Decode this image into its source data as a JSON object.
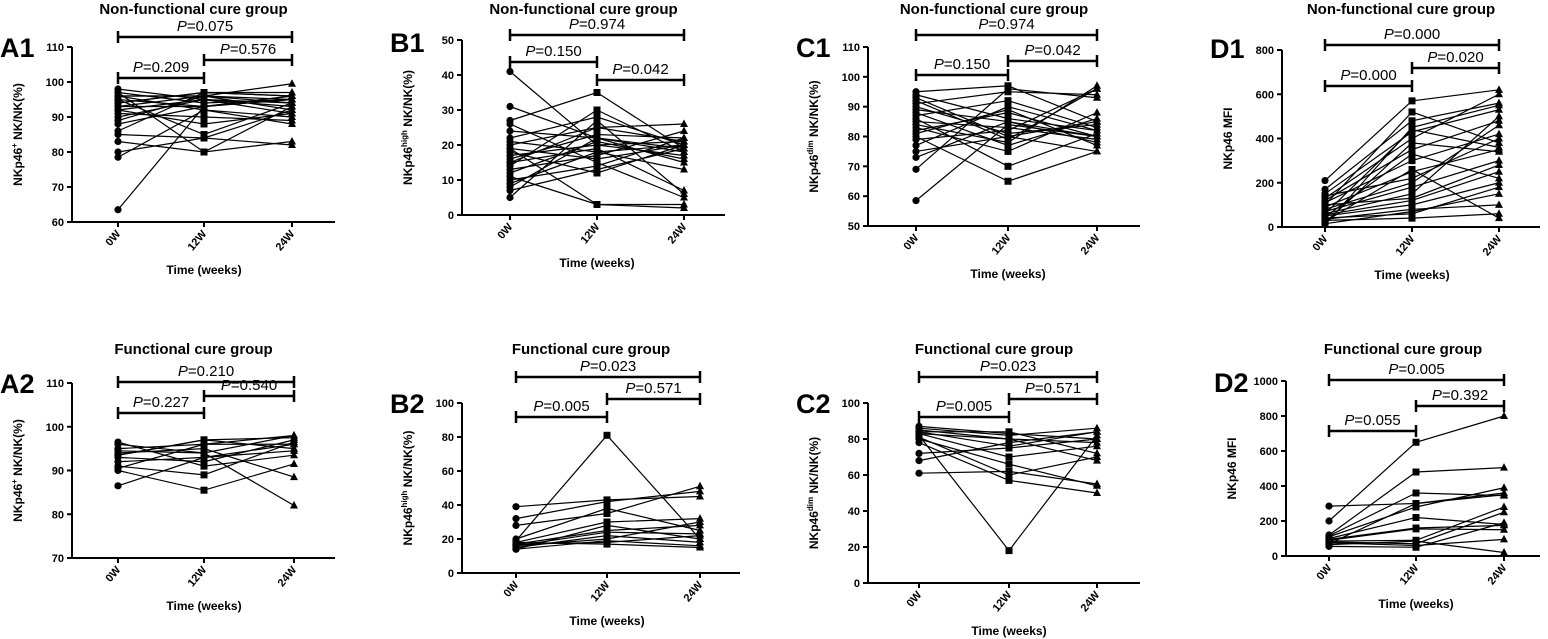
{
  "chart_data": [
    {
      "id": "A1",
      "type": "line",
      "title": "Non-functional cure group",
      "ylabel": {
        "prefix": "NKp46",
        "sup": "+",
        "suffix": " NK/NK(%)"
      },
      "xlabel": "Time (weeks)",
      "categories": [
        "0W",
        "12W",
        "24W"
      ],
      "ylim": [
        60,
        110
      ],
      "yticks": [
        60,
        70,
        80,
        90,
        100,
        110
      ],
      "pvalues": {
        "overall": "=0.075",
        "w0_w12": "=0.209",
        "w12_w24": "=0.576"
      },
      "series": [
        [
          63.5,
          93,
          95
        ],
        [
          78.5,
          92,
          88
        ],
        [
          80,
          84,
          92
        ],
        [
          83,
          80,
          93
        ],
        [
          85,
          84,
          82
        ],
        [
          86,
          97,
          96
        ],
        [
          90,
          95,
          94
        ],
        [
          92,
          88,
          91
        ],
        [
          93,
          96,
          95
        ],
        [
          94,
          97,
          97
        ],
        [
          95,
          93,
          96
        ],
        [
          96,
          96,
          99.5
        ],
        [
          97,
          94,
          95
        ],
        [
          98,
          95,
          93
        ],
        [
          91,
          90,
          89
        ],
        [
          89,
          96,
          92
        ],
        [
          95,
          85,
          94
        ],
        [
          96,
          92,
          90
        ],
        [
          94,
          97,
          96
        ],
        [
          93,
          93,
          95
        ],
        [
          97,
          80,
          83
        ],
        [
          92,
          95,
          91
        ],
        [
          88,
          93,
          96
        ],
        [
          96,
          96,
          94
        ]
      ]
    },
    {
      "id": "B1",
      "type": "line",
      "title": "Non-functional cure group",
      "ylabel": {
        "prefix": "NKp46",
        "sup": "high",
        "suffix": " NK/NK(%)"
      },
      "xlabel": "Time (weeks)",
      "categories": [
        "0W",
        "12W",
        "24W"
      ],
      "ylim": [
        0,
        50
      ],
      "yticks": [
        0,
        10,
        20,
        30,
        40,
        50
      ],
      "pvalues": {
        "overall": "=0.974",
        "w0_w12": "=0.150",
        "w12_w24": "=0.042"
      },
      "series": [
        [
          41,
          20,
          17
        ],
        [
          31,
          22,
          19
        ],
        [
          27,
          35,
          19
        ],
        [
          26,
          15,
          5
        ],
        [
          22,
          28,
          20
        ],
        [
          20,
          25,
          26
        ],
        [
          19,
          3,
          3
        ],
        [
          18,
          12,
          20
        ],
        [
          17,
          20,
          21
        ],
        [
          16,
          23,
          22
        ],
        [
          15,
          19,
          7
        ],
        [
          14,
          30,
          18
        ],
        [
          13,
          17,
          24
        ],
        [
          12,
          21,
          16
        ],
        [
          10,
          14,
          22
        ],
        [
          9,
          18,
          20
        ],
        [
          8,
          22,
          15
        ],
        [
          7,
          13,
          19
        ],
        [
          5,
          27,
          6
        ],
        [
          11,
          3,
          2
        ],
        [
          21,
          18,
          13
        ],
        [
          24,
          22,
          18
        ],
        [
          15,
          25,
          21
        ],
        [
          19,
          16,
          20
        ]
      ]
    },
    {
      "id": "C1",
      "type": "line",
      "title": "Non-functional cure group",
      "ylabel": {
        "prefix": "NKp46",
        "sup": "dim",
        "suffix": " NK/NK(%)"
      },
      "xlabel": "Time (weeks)",
      "categories": [
        "0W",
        "12W",
        "24W"
      ],
      "ylim": [
        50,
        110
      ],
      "yticks": [
        50,
        60,
        70,
        80,
        90,
        100,
        110
      ],
      "pvalues": {
        "overall": "=0.974",
        "w0_w12": "=0.150",
        "w12_w24": "=0.042"
      },
      "series": [
        [
          58.5,
          84,
          80
        ],
        [
          69,
          96,
          93
        ],
        [
          73,
          85,
          80
        ],
        [
          75,
          80,
          85
        ],
        [
          77,
          90,
          82
        ],
        [
          79,
          82,
          96
        ],
        [
          80,
          65,
          75
        ],
        [
          82,
          88,
          80
        ],
        [
          84,
          78,
          97
        ],
        [
          85,
          83,
          79
        ],
        [
          86,
          70,
          81
        ],
        [
          87,
          92,
          83
        ],
        [
          88,
          77,
          86
        ],
        [
          89,
          85,
          78
        ],
        [
          90,
          81,
          84
        ],
        [
          91,
          95,
          94
        ],
        [
          93,
          80,
          75
        ],
        [
          94,
          86,
          82
        ],
        [
          95,
          97,
          85
        ],
        [
          83,
          75,
          88
        ],
        [
          81,
          89,
          77
        ],
        [
          92,
          79,
          96
        ]
      ]
    },
    {
      "id": "D1",
      "type": "line",
      "title": "Non-functional cure group",
      "ylabel": {
        "prefix": "NKp46 MFI",
        "sup": "",
        "suffix": ""
      },
      "xlabel": "Time (weeks)",
      "categories": [
        "0W",
        "12W",
        "24W"
      ],
      "ylim": [
        0,
        800
      ],
      "yticks": [
        0,
        200,
        400,
        600,
        800
      ],
      "pvalues": {
        "overall": "=0.000",
        "w0_w12": "=0.000",
        "w12_w24": "=0.020"
      },
      "series": [
        [
          210,
          570,
          620
        ],
        [
          170,
          480,
          560
        ],
        [
          150,
          430,
          530
        ],
        [
          130,
          400,
          600
        ],
        [
          120,
          350,
          480
        ],
        [
          110,
          300,
          420
        ],
        [
          100,
          520,
          380
        ],
        [
          90,
          250,
          350
        ],
        [
          80,
          200,
          460
        ],
        [
          70,
          180,
          300
        ],
        [
          60,
          150,
          500
        ],
        [
          55,
          120,
          250
        ],
        [
          50,
          100,
          200
        ],
        [
          45,
          330,
          220
        ],
        [
          40,
          60,
          180
        ],
        [
          35,
          80,
          100
        ],
        [
          30,
          40,
          60
        ],
        [
          25,
          260,
          40
        ],
        [
          20,
          380,
          340
        ],
        [
          15,
          70,
          150
        ],
        [
          10,
          450,
          550
        ],
        [
          140,
          220,
          400
        ],
        [
          60,
          440,
          360
        ],
        [
          100,
          130,
          280
        ]
      ]
    },
    {
      "id": "A2",
      "type": "line",
      "title": "Functional cure group",
      "ylabel": {
        "prefix": "NKp46",
        "sup": "+",
        "suffix": " NK/NK(%)"
      },
      "xlabel": "Time (weeks)",
      "categories": [
        "0W",
        "12W",
        "24W"
      ],
      "ylim": [
        70,
        110
      ],
      "yticks": [
        70,
        80,
        90,
        100,
        110
      ],
      "pvalues": {
        "overall": "=0.210",
        "w0_w12": "=0.227",
        "w12_w24": "=0.540"
      },
      "series": [
        [
          86.5,
          93,
          96
        ],
        [
          90,
          85.5,
          91.5
        ],
        [
          90.5,
          96,
          98
        ],
        [
          92,
          93,
          94.5
        ],
        [
          93,
          92,
          97
        ],
        [
          93.5,
          97,
          95
        ],
        [
          94,
          95,
          88.5
        ],
        [
          94.5,
          94,
          82
        ],
        [
          95,
          96,
          96
        ],
        [
          96,
          94,
          98
        ],
        [
          96.5,
          91,
          93.5
        ],
        [
          91,
          89,
          96.5
        ],
        [
          93.5,
          97,
          97.5
        ]
      ]
    },
    {
      "id": "B2",
      "type": "line",
      "title": "Functional cure group",
      "ylabel": {
        "prefix": "NKp46",
        "sup": "high",
        "suffix": " NK/NK(%)"
      },
      "xlabel": "Time (weeks)",
      "categories": [
        "0W",
        "12W",
        "24W"
      ],
      "ylim": [
        0,
        100
      ],
      "yticks": [
        0,
        20,
        40,
        60,
        80,
        100
      ],
      "pvalues": {
        "overall": "=0.023",
        "w0_w12": "=0.005",
        "w12_w24": "=0.571"
      },
      "series": [
        [
          39,
          43,
          45
        ],
        [
          32,
          42,
          48
        ],
        [
          28,
          35,
          51
        ],
        [
          19,
          81,
          20
        ],
        [
          18,
          30,
          32
        ],
        [
          17,
          25,
          28
        ],
        [
          16,
          20,
          30
        ],
        [
          15,
          22,
          18
        ],
        [
          14,
          19,
          16
        ],
        [
          14,
          28,
          20
        ],
        [
          18,
          17,
          15
        ],
        [
          16,
          24,
          23
        ],
        [
          20,
          38,
          25
        ],
        [
          17,
          18,
          22
        ]
      ]
    },
    {
      "id": "C2",
      "type": "line",
      "title": "Functional cure group",
      "ylabel": {
        "prefix": "NKp46",
        "sup": "dim",
        "suffix": " NK/NK(%)"
      },
      "xlabel": "Time (weeks)",
      "categories": [
        "0W",
        "12W",
        "24W"
      ],
      "ylim": [
        0,
        100
      ],
      "yticks": [
        0,
        20,
        40,
        60,
        80,
        100
      ],
      "pvalues": {
        "overall": "=0.023",
        "w0_w12": "=0.005",
        "w12_w24": "=0.571"
      },
      "series": [
        [
          87,
          83,
          80
        ],
        [
          86,
          82,
          86
        ],
        [
          85,
          80,
          78
        ],
        [
          84,
          76,
          84
        ],
        [
          83,
          70,
          76
        ],
        [
          82,
          18,
          82
        ],
        [
          81,
          60,
          70
        ],
        [
          80,
          66,
          54
        ],
        [
          78,
          57,
          50
        ],
        [
          72,
          75,
          80
        ],
        [
          68,
          78,
          84
        ],
        [
          61,
          62,
          55
        ],
        [
          84,
          84,
          72
        ],
        [
          83,
          80,
          68
        ]
      ]
    },
    {
      "id": "D2",
      "type": "line",
      "title": "Functional cure group",
      "ylabel": {
        "prefix": "NKp46 MFI",
        "sup": "",
        "suffix": ""
      },
      "xlabel": "Time (weeks)",
      "categories": [
        "0W",
        "12W",
        "24W"
      ],
      "ylim": [
        0,
        1000
      ],
      "yticks": [
        0,
        200,
        400,
        600,
        800,
        1000
      ],
      "pvalues": {
        "overall": "=0.005",
        "w0_w12": "=0.055",
        "w12_w24": "=0.392"
      },
      "series": [
        [
          285,
          300,
          350
        ],
        [
          200,
          650,
          800
        ],
        [
          120,
          480,
          505
        ],
        [
          115,
          360,
          345
        ],
        [
          110,
          280,
          390
        ],
        [
          100,
          220,
          180
        ],
        [
          95,
          160,
          175
        ],
        [
          90,
          155,
          150
        ],
        [
          85,
          90,
          280
        ],
        [
          80,
          70,
          250
        ],
        [
          75,
          60,
          95
        ],
        [
          65,
          85,
          20
        ],
        [
          55,
          50,
          190
        ],
        [
          70,
          300,
          360
        ]
      ]
    }
  ],
  "p_symbol": "P",
  "colors": {
    "ink": "#000000"
  }
}
